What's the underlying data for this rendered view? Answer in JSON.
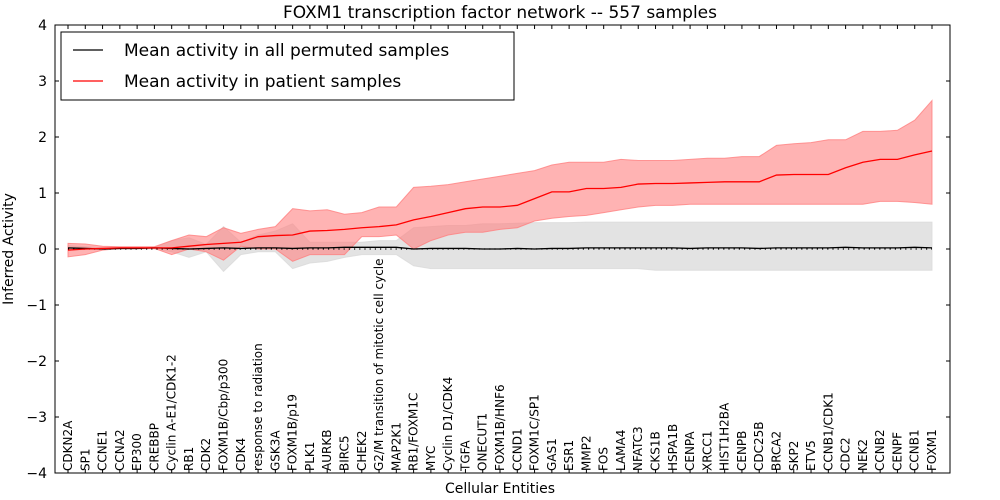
{
  "chart_data": {
    "type": "line",
    "title": "FOXM1 transcription factor network -- 557 samples",
    "xlabel": "Cellular Entities",
    "ylabel": "Inferred Activity",
    "ylim": [
      -4,
      4
    ],
    "yticks": [
      -4,
      -3,
      -2,
      -1,
      0,
      1,
      2,
      3,
      4
    ],
    "ytick_labels": [
      "−4",
      "−3",
      "−2",
      "−1",
      "0",
      "1",
      "2",
      "3",
      "4"
    ],
    "grid": false,
    "legend_position": "top-left",
    "categories": [
      "CDKN2A",
      "SP1",
      "CCNE1",
      "CCNA2",
      "EP300",
      "CREBBP",
      "Cyclin A-E1/CDK1-2",
      "RB1",
      "CDK2",
      "FOXM1B/Cbp/p300",
      "CDK4",
      "response to radiation",
      "GSK3A",
      "FOXM1B/p19",
      "PLK1",
      "AURKB",
      "BIRC5",
      "CHEK2",
      "G2/M transition of mitotic cell cycle",
      "MAP2K1",
      "RB1/FOXM1C",
      "MYC",
      "Cyclin D1/CDK4",
      "TGFA",
      "ONECUT1",
      "FOXM1B/HNF6",
      "CCND1",
      "FOXM1C/SP1",
      "GAS1",
      "ESR1",
      "MMP2",
      "FOS",
      "LAMA4",
      "NFATC3",
      "CKS1B",
      "HSPA1B",
      "CENPA",
      "XRCC1",
      "HIST1H2BA",
      "CENPB",
      "CDC25B",
      "BRCA2",
      "SKP2",
      "ETV5",
      "CCNB1/CDK1",
      "CDC2",
      "NEK2",
      "CCNB2",
      "CENPF",
      "CCNB1",
      "FOXM1"
    ],
    "series": [
      {
        "name": "Mean activity in all permuted samples",
        "color": "#000000",
        "band_color": "#d9d9d9",
        "values": [
          0.02,
          0.01,
          0.0,
          0.01,
          0.01,
          0.02,
          0.01,
          0.0,
          0.01,
          0.02,
          0.01,
          0.02,
          0.02,
          0.01,
          0.02,
          0.02,
          0.03,
          0.03,
          0.03,
          0.03,
          0.0,
          0.01,
          0.01,
          0.01,
          0.0,
          0.0,
          0.01,
          0.0,
          0.01,
          0.01,
          0.02,
          0.02,
          0.02,
          0.02,
          0.02,
          0.02,
          0.01,
          0.02,
          0.02,
          0.02,
          0.01,
          0.02,
          0.02,
          0.02,
          0.02,
          0.03,
          0.02,
          0.02,
          0.02,
          0.03,
          0.02
        ],
        "lower": [
          -0.02,
          -0.01,
          0.0,
          0.0,
          0.0,
          0.0,
          -0.05,
          -0.15,
          -0.05,
          -0.4,
          -0.1,
          -0.05,
          -0.05,
          -0.35,
          -0.25,
          -0.22,
          -0.15,
          -0.1,
          -0.1,
          -0.1,
          -0.3,
          -0.35,
          -0.35,
          -0.35,
          -0.35,
          -0.35,
          -0.35,
          -0.35,
          -0.35,
          -0.35,
          -0.35,
          -0.35,
          -0.35,
          -0.35,
          -0.38,
          -0.38,
          -0.38,
          -0.38,
          -0.38,
          -0.38,
          -0.38,
          -0.38,
          -0.38,
          -0.38,
          -0.38,
          -0.38,
          -0.38,
          -0.38,
          -0.38,
          -0.38,
          -0.38
        ],
        "upper": [
          0.06,
          0.04,
          0.02,
          0.02,
          0.02,
          0.03,
          0.15,
          0.2,
          0.08,
          0.4,
          0.12,
          0.25,
          0.32,
          0.45,
          0.12,
          0.12,
          0.12,
          0.12,
          0.15,
          0.15,
          0.38,
          0.4,
          0.42,
          0.42,
          0.45,
          0.45,
          0.46,
          0.47,
          0.47,
          0.47,
          0.48,
          0.48,
          0.48,
          0.48,
          0.48,
          0.48,
          0.48,
          0.48,
          0.48,
          0.48,
          0.48,
          0.48,
          0.48,
          0.48,
          0.48,
          0.48,
          0.48,
          0.48,
          0.48,
          0.48,
          0.48
        ]
      },
      {
        "name": "Mean activity in patient samples",
        "color": "#ff0000",
        "band_color": "#ff8080",
        "values": [
          -0.02,
          0.0,
          0.01,
          0.02,
          0.02,
          0.02,
          0.02,
          0.05,
          0.08,
          0.1,
          0.12,
          0.22,
          0.24,
          0.25,
          0.32,
          0.33,
          0.35,
          0.38,
          0.4,
          0.43,
          0.52,
          0.58,
          0.65,
          0.72,
          0.75,
          0.75,
          0.78,
          0.9,
          1.02,
          1.02,
          1.08,
          1.08,
          1.1,
          1.16,
          1.17,
          1.17,
          1.18,
          1.19,
          1.2,
          1.2,
          1.2,
          1.32,
          1.33,
          1.33,
          1.33,
          1.45,
          1.55,
          1.6,
          1.6,
          1.68,
          1.75
        ],
        "lower": [
          -0.14,
          -0.1,
          -0.02,
          0.01,
          0.01,
          0.01,
          -0.1,
          0.0,
          -0.05,
          -0.2,
          0.05,
          0.0,
          0.0,
          -0.22,
          -0.1,
          -0.1,
          -0.1,
          0.22,
          0.22,
          0.25,
          0.0,
          0.15,
          0.25,
          0.3,
          0.3,
          0.35,
          0.38,
          0.5,
          0.55,
          0.58,
          0.6,
          0.65,
          0.7,
          0.75,
          0.78,
          0.78,
          0.8,
          0.8,
          0.8,
          0.8,
          0.8,
          0.8,
          0.8,
          0.8,
          0.8,
          0.8,
          0.8,
          0.85,
          0.85,
          0.83,
          0.8
        ],
        "upper": [
          0.1,
          0.09,
          0.05,
          0.04,
          0.04,
          0.04,
          0.15,
          0.25,
          0.22,
          0.38,
          0.28,
          0.35,
          0.4,
          0.72,
          0.68,
          0.7,
          0.62,
          0.65,
          0.75,
          0.75,
          1.1,
          1.12,
          1.15,
          1.2,
          1.25,
          1.3,
          1.35,
          1.4,
          1.5,
          1.55,
          1.55,
          1.55,
          1.6,
          1.58,
          1.58,
          1.58,
          1.6,
          1.62,
          1.62,
          1.65,
          1.65,
          1.85,
          1.88,
          1.9,
          1.95,
          1.95,
          2.1,
          2.1,
          2.12,
          2.3,
          2.65
        ]
      }
    ],
    "reference_line": {
      "value": 0,
      "style": "dotted"
    }
  }
}
